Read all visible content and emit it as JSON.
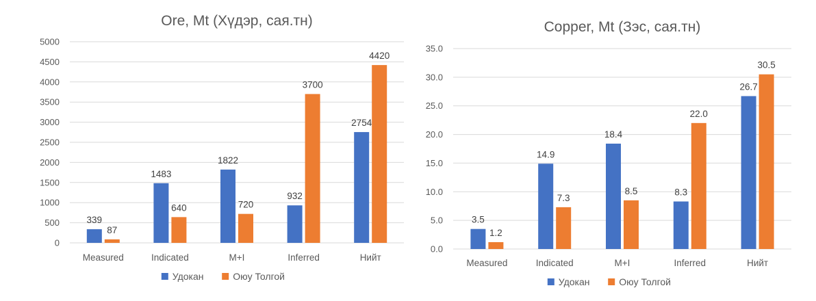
{
  "chart_data": [
    {
      "type": "bar",
      "title": "Ore, Mt (Хүдэр, сая.тн)",
      "categories": [
        "Measured",
        "Indicated",
        "M+I",
        "Inferred",
        "Нийт"
      ],
      "series": [
        {
          "name": "Удокан",
          "color": "#4472C4",
          "values": [
            339,
            1483,
            1822,
            932,
            2754
          ],
          "labels": [
            "339",
            "1483",
            "1822",
            "932",
            "2754"
          ]
        },
        {
          "name": "Оюу Толгой",
          "color": "#ED7D31",
          "values": [
            87,
            640,
            720,
            3700,
            4420
          ],
          "labels": [
            "87",
            "640",
            "720",
            "3700",
            "4420"
          ]
        }
      ],
      "ylim": [
        0,
        5000
      ],
      "yticks": [
        "0",
        "500",
        "1000",
        "1500",
        "2000",
        "2500",
        "3000",
        "3500",
        "4000",
        "4500",
        "5000"
      ],
      "xlabel": "",
      "ylabel": "",
      "grid": true,
      "legend": "bottom"
    },
    {
      "type": "bar",
      "title": "Copper, Mt (Зэс, сая.тн)",
      "categories": [
        "Measured",
        "Indicated",
        "M+I",
        "Inferred",
        "Нийт"
      ],
      "series": [
        {
          "name": "Удокан",
          "color": "#4472C4",
          "values": [
            3.5,
            14.9,
            18.4,
            8.3,
            26.7
          ],
          "labels": [
            "3.5",
            "14.9",
            "18.4",
            "8.3",
            "26.7"
          ]
        },
        {
          "name": "Оюу Толгой",
          "color": "#ED7D31",
          "values": [
            1.2,
            7.3,
            8.5,
            22.0,
            30.5
          ],
          "labels": [
            "1.2",
            "7.3",
            "8.5",
            "22.0",
            "30.5"
          ]
        }
      ],
      "ylim": [
        0,
        35
      ],
      "yticks": [
        "0.0",
        "5.0",
        "10.0",
        "15.0",
        "20.0",
        "25.0",
        "30.0",
        "35.0"
      ],
      "xlabel": "",
      "ylabel": "",
      "grid": true,
      "legend": "bottom"
    }
  ]
}
